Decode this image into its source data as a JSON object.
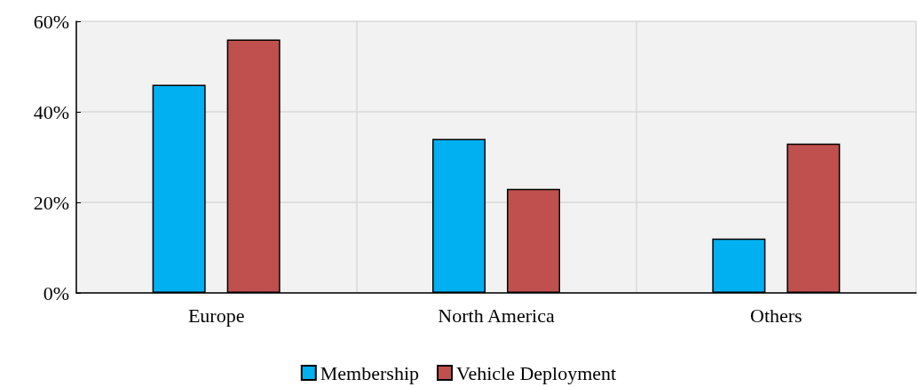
{
  "chart_data": {
    "type": "bar",
    "categories": [
      "Europe",
      "North America",
      "Others"
    ],
    "series": [
      {
        "name": "Membership",
        "color": "#00b0f0",
        "values": [
          46,
          34,
          12
        ]
      },
      {
        "name": "Vehicle Deployment",
        "color": "#c0504d",
        "values": [
          56,
          23,
          33
        ]
      }
    ],
    "ylim": [
      0,
      60
    ],
    "yticks": [
      {
        "value": 0,
        "label": "0%"
      },
      {
        "value": 20,
        "label": "20%"
      },
      {
        "value": 40,
        "label": "40%"
      },
      {
        "value": 60,
        "label": "60%"
      }
    ],
    "grid": true,
    "legend": "bottom"
  }
}
